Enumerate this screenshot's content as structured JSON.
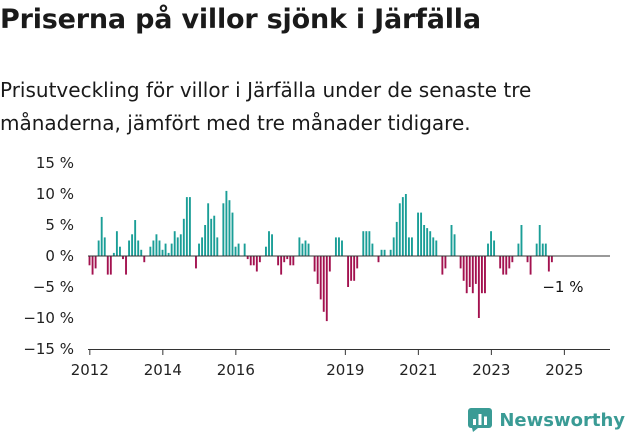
{
  "header": {
    "title": "Priserna på villor sjönk i Järfälla",
    "subtitle": "Prisutveckling för villor i Järfälla under de senaste tre månaderna, jämfört med tre månader tidigare."
  },
  "brand": {
    "name": "Newsworthy",
    "icon": "newsworthy-logo-icon"
  },
  "colors": {
    "positive": "#1a9e97",
    "negative": "#a3124f",
    "axis": "#333333"
  },
  "chart_data": {
    "type": "bar",
    "title": "",
    "xlabel": "",
    "ylabel": "",
    "unit": "%",
    "ylim": [
      -15,
      15
    ],
    "yticks": [
      {
        "value": 15,
        "label": "15 %"
      },
      {
        "value": 10,
        "label": "10 %"
      },
      {
        "value": 5,
        "label": "5 %"
      },
      {
        "value": 0,
        "label": "0 %"
      },
      {
        "value": -5,
        "label": "−5 %"
      },
      {
        "value": -10,
        "label": "−10 %"
      },
      {
        "value": -15,
        "label": "−15 %"
      }
    ],
    "xticks": [
      {
        "value": 2012,
        "label": "2012"
      },
      {
        "value": 2014,
        "label": "2014"
      },
      {
        "value": 2016,
        "label": "2016"
      },
      {
        "value": 2019,
        "label": "2019"
      },
      {
        "value": 2021,
        "label": "2021"
      },
      {
        "value": 2023,
        "label": "2023"
      },
      {
        "value": 2025,
        "label": "2025"
      }
    ],
    "xlim": [
      2011.95,
      2026.25
    ],
    "x_start": 2011.95,
    "step": 0.08333,
    "values": [
      -1.5,
      -3,
      -2,
      2.5,
      6.3,
      3,
      -3,
      -3,
      0.5,
      4,
      1.5,
      -0.5,
      -3,
      2.5,
      3.5,
      5.8,
      2.5,
      1,
      -1,
      0,
      1.5,
      2.5,
      3.5,
      2.5,
      1,
      2,
      0.5,
      2,
      4,
      3,
      3.5,
      6,
      9.5,
      9.5,
      0,
      -2,
      2,
      3,
      5,
      8.5,
      6,
      6.5,
      3,
      0,
      8.5,
      10.5,
      9,
      7,
      1.5,
      2,
      0,
      2,
      -0.5,
      -1.5,
      -1.5,
      -2.5,
      -1,
      0,
      1.5,
      4,
      3.5,
      0,
      -1.5,
      -3,
      -1,
      -0.5,
      -1.5,
      -1.5,
      0,
      3,
      2,
      2.5,
      2,
      0,
      -2.5,
      -4.5,
      -7,
      -9,
      -10.5,
      -2.5,
      0,
      3,
      3,
      2.5,
      0,
      -5,
      -4,
      -4,
      -2,
      0,
      4,
      4,
      4,
      2,
      0,
      -1,
      1,
      1,
      0,
      1,
      3,
      5.5,
      8.5,
      9.5,
      10,
      3,
      3,
      0,
      7,
      7,
      5,
      4.5,
      4,
      3,
      2.5,
      0,
      -3,
      -2,
      0,
      5,
      3.5,
      0,
      -2,
      -4,
      -6,
      -5,
      -6,
      -4.5,
      -10,
      -6,
      -6,
      2,
      4,
      2.5,
      0,
      -2,
      -3,
      -3,
      -2,
      -1,
      0,
      2,
      5,
      0,
      -1,
      -3,
      0,
      2,
      5,
      2,
      2,
      -2.5,
      -1
    ],
    "annotations": [
      {
        "x": 2025.0,
        "y": -1,
        "text": "−1 %"
      }
    ],
    "grid": false,
    "legend": "none"
  }
}
